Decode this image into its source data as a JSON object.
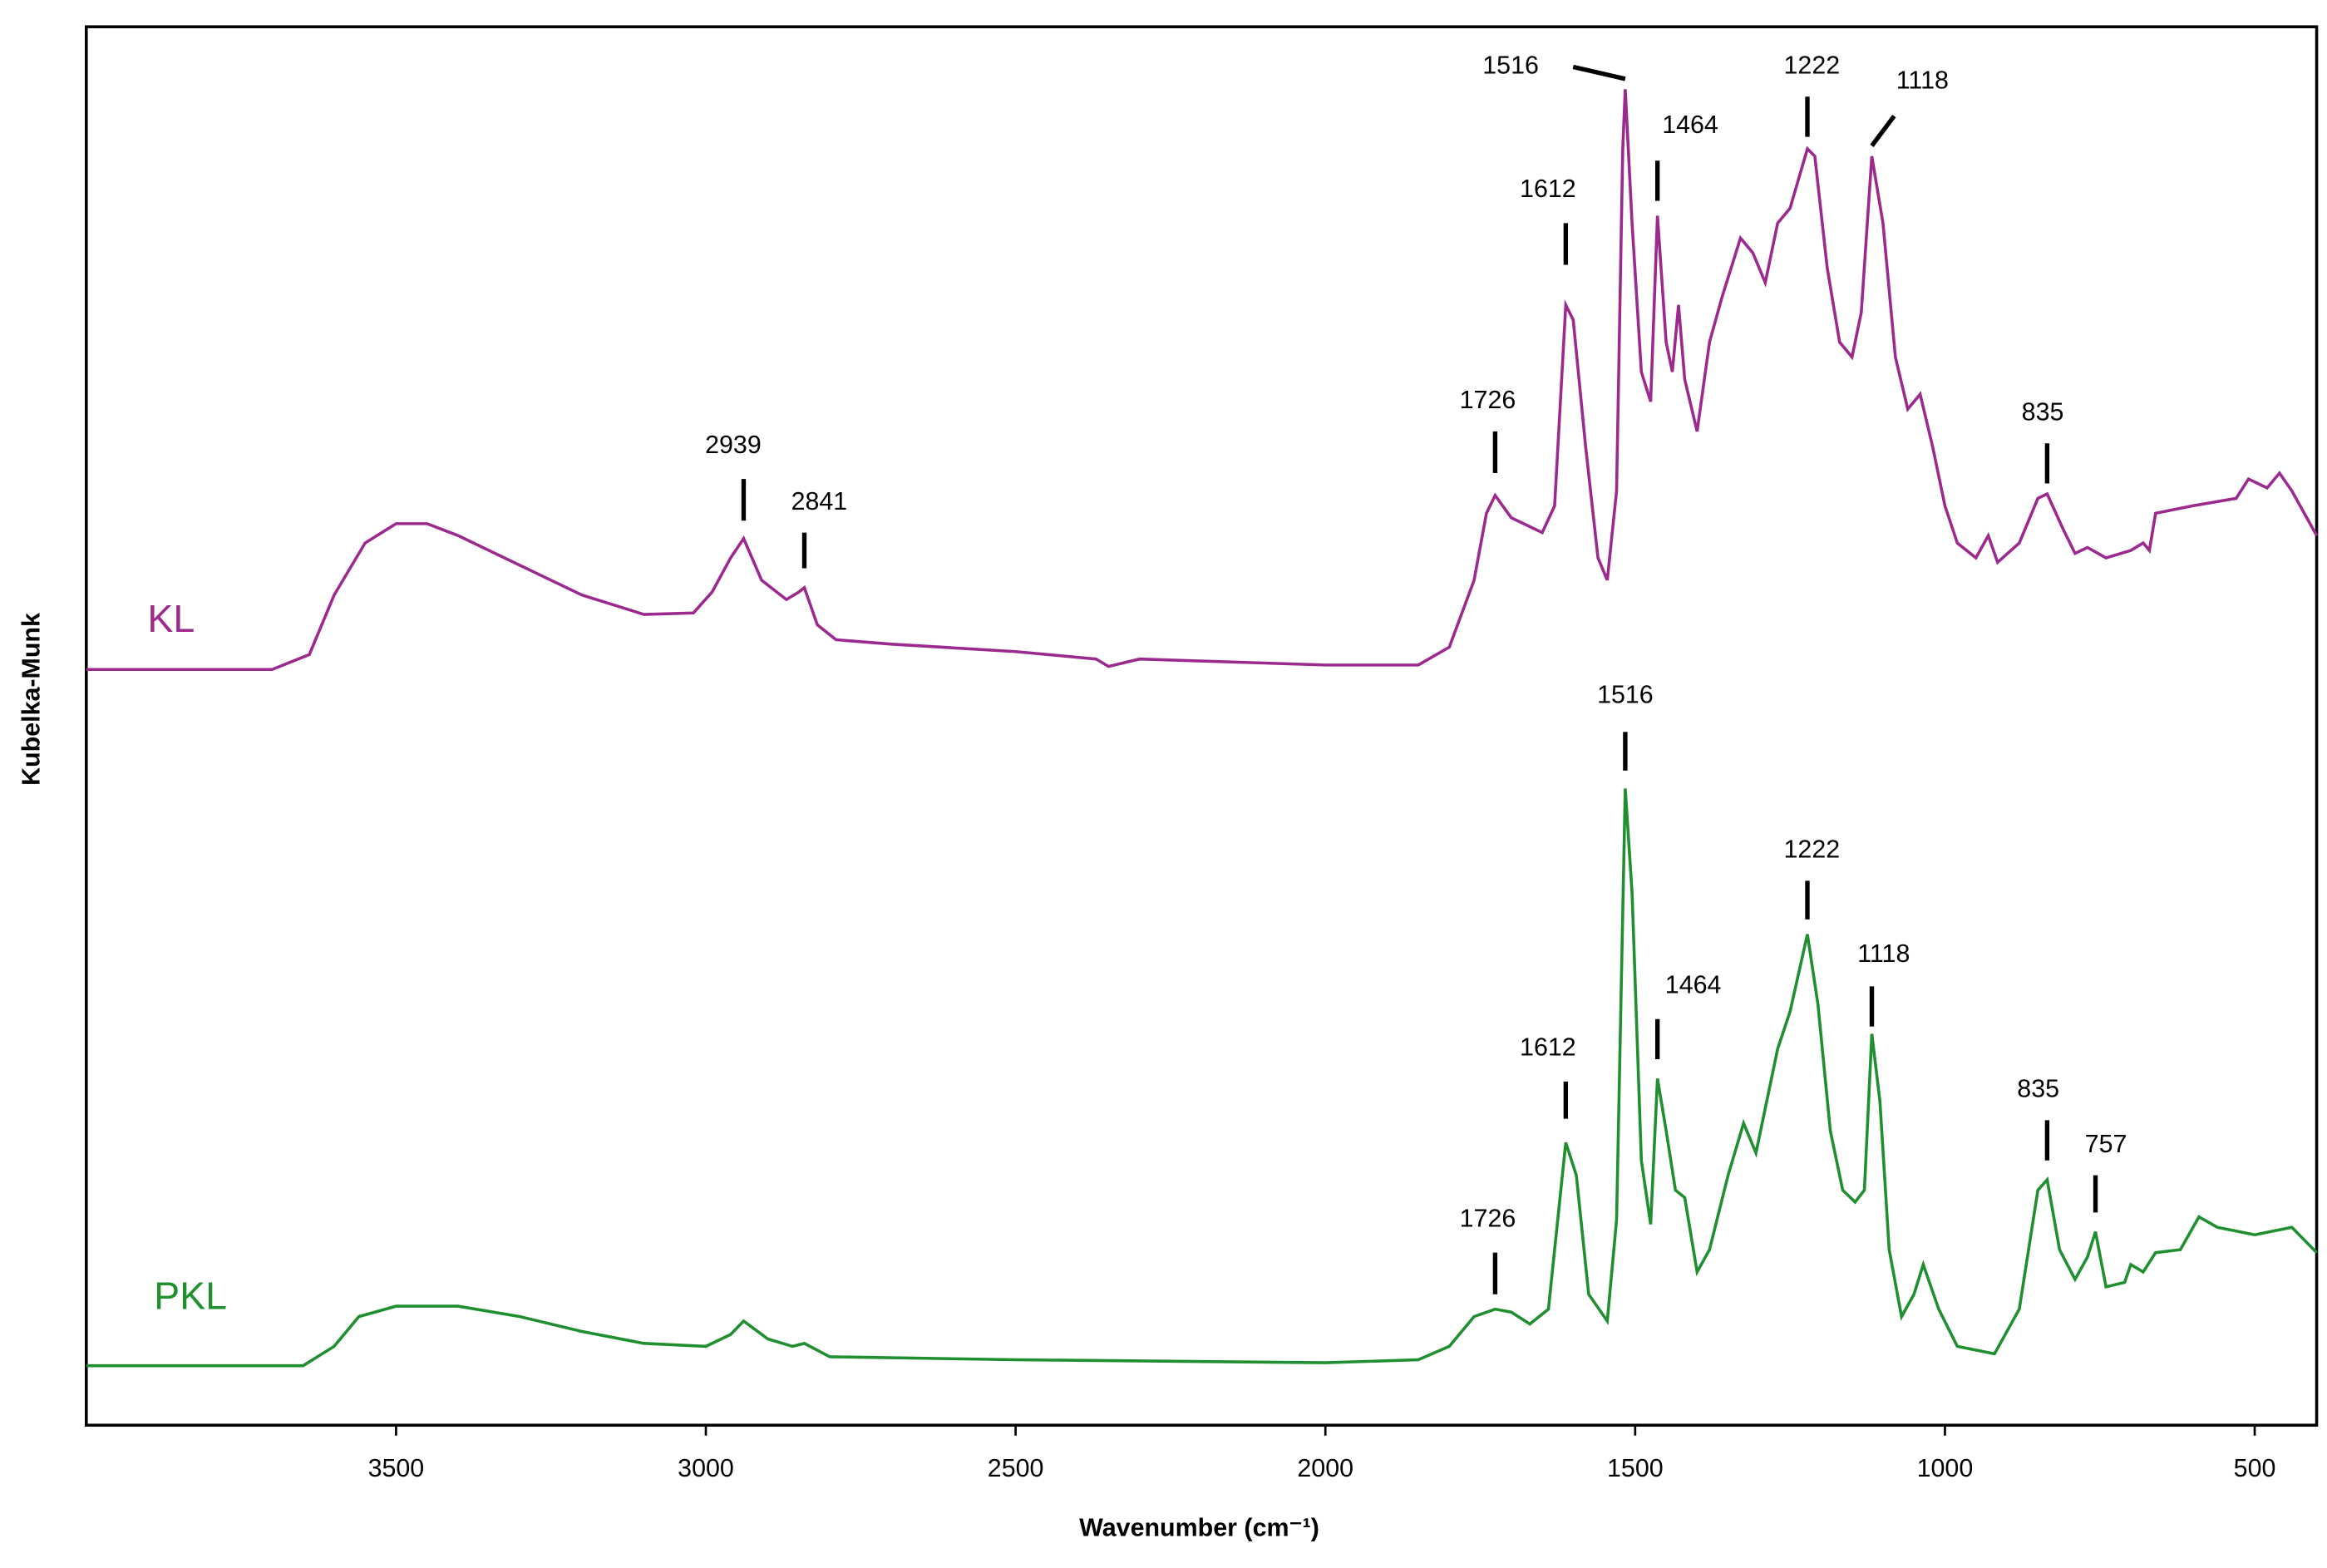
{
  "chart_data": {
    "type": "line",
    "x_label": "Wavenumber (cm⁻¹)",
    "y_label": "Kubelka-Munk",
    "xlim": [
      4000,
      400
    ],
    "xticks": [
      3500,
      3000,
      2500,
      2000,
      1500,
      1000,
      500
    ],
    "ylim": [
      0,
      94
    ],
    "series": [
      {
        "name": "KL",
        "color": "#9c2a8e",
        "x": [
          4000,
          3700,
          3640,
          3600,
          3550,
          3500,
          3450,
          3400,
          3300,
          3200,
          3100,
          3020,
          2990,
          2960,
          2939,
          2910,
          2870,
          2850,
          2841,
          2820,
          2790,
          2700,
          2500,
          2370,
          2350,
          2300,
          2000,
          1850,
          1800,
          1760,
          1740,
          1726,
          1700,
          1680,
          1650,
          1630,
          1612,
          1600,
          1580,
          1560,
          1545,
          1530,
          1520,
          1516,
          1505,
          1490,
          1475,
          1464,
          1450,
          1440,
          1430,
          1420,
          1400,
          1380,
          1360,
          1330,
          1310,
          1290,
          1270,
          1250,
          1222,
          1210,
          1190,
          1170,
          1150,
          1135,
          1118,
          1100,
          1080,
          1060,
          1040,
          1020,
          1000,
          980,
          950,
          930,
          915,
          880,
          850,
          835,
          810,
          790,
          770,
          740,
          700,
          680,
          670,
          660,
          600,
          530,
          510,
          480,
          460,
          440,
          400
        ],
        "values": [
          50.8,
          50.8,
          51.8,
          55.8,
          59.3,
          60.6,
          60.6,
          59.8,
          57.8,
          55.8,
          54.5,
          54.6,
          56,
          58.3,
          59.6,
          56.8,
          55.5,
          56,
          56.3,
          53.8,
          52.8,
          52.5,
          52,
          51.5,
          51,
          51.5,
          51.1,
          51.1,
          52.3,
          56.8,
          61.3,
          62.5,
          61,
          60.6,
          60,
          61.8,
          75.3,
          74.3,
          65.8,
          58.3,
          56.8,
          62.8,
          85.8,
          89.8,
          80.8,
          70.8,
          68.8,
          81.3,
          72.8,
          70.8,
          75.3,
          70.3,
          66.8,
          72.8,
          75.8,
          79.8,
          78.8,
          76.8,
          80.8,
          81.8,
          85.8,
          85.3,
          77.8,
          72.8,
          71.8,
          74.8,
          85.3,
          80.8,
          71.8,
          68.3,
          69.3,
          65.8,
          61.8,
          59.3,
          58.3,
          59.8,
          58,
          59.3,
          62.3,
          62.6,
          60.3,
          58.6,
          59,
          58.3,
          58.8,
          59.3,
          58.8,
          61.3,
          61.8,
          62.3,
          63.6,
          63,
          64,
          62.8,
          59.8
        ],
        "annotations": [
          "2939",
          "2841",
          "1726",
          "1612",
          "1516",
          "1464",
          "1222",
          "1118",
          "835"
        ]
      },
      {
        "name": "PKL",
        "color": "#1f8f2f",
        "x": [
          4000,
          3650,
          3600,
          3560,
          3500,
          3400,
          3300,
          3200,
          3100,
          3000,
          2960,
          2939,
          2900,
          2860,
          2841,
          2800,
          2500,
          2000,
          1850,
          1800,
          1760,
          1726,
          1700,
          1670,
          1640,
          1612,
          1595,
          1575,
          1545,
          1530,
          1516,
          1505,
          1490,
          1475,
          1464,
          1450,
          1435,
          1420,
          1400,
          1380,
          1350,
          1325,
          1305,
          1270,
          1250,
          1222,
          1205,
          1185,
          1165,
          1145,
          1130,
          1118,
          1105,
          1090,
          1070,
          1050,
          1035,
          1010,
          980,
          920,
          880,
          850,
          835,
          815,
          790,
          770,
          757,
          740,
          710,
          700,
          680,
          660,
          620,
          590,
          560,
          500,
          440,
          400
        ],
        "values": [
          4,
          4,
          5.3,
          7.3,
          8,
          8,
          7.3,
          6.3,
          5.5,
          5.3,
          6.1,
          7,
          5.8,
          5.3,
          5.5,
          4.6,
          4.4,
          4.2,
          4.4,
          5.3,
          7.3,
          7.8,
          7.6,
          6.8,
          7.8,
          19,
          16.8,
          8.8,
          7,
          13.8,
          42.8,
          35.8,
          17.8,
          13.5,
          23.3,
          19.8,
          15.8,
          15.3,
          10.3,
          11.8,
          16.8,
          20.3,
          18.3,
          25.3,
          27.8,
          33,
          28.3,
          19.8,
          15.8,
          15,
          15.8,
          26.3,
          21.8,
          11.8,
          7.3,
          8.8,
          10.8,
          7.8,
          5.3,
          4.8,
          7.8,
          15.8,
          16.5,
          11.8,
          9.8,
          11.3,
          13,
          9.3,
          9.6,
          10.8,
          10.3,
          11.6,
          11.8,
          14,
          13.3,
          12.8,
          13.3,
          11.6
        ],
        "annotations": [
          "1726",
          "1612",
          "1516",
          "1464",
          "1222",
          "1118",
          "835",
          "757"
        ]
      }
    ]
  }
}
